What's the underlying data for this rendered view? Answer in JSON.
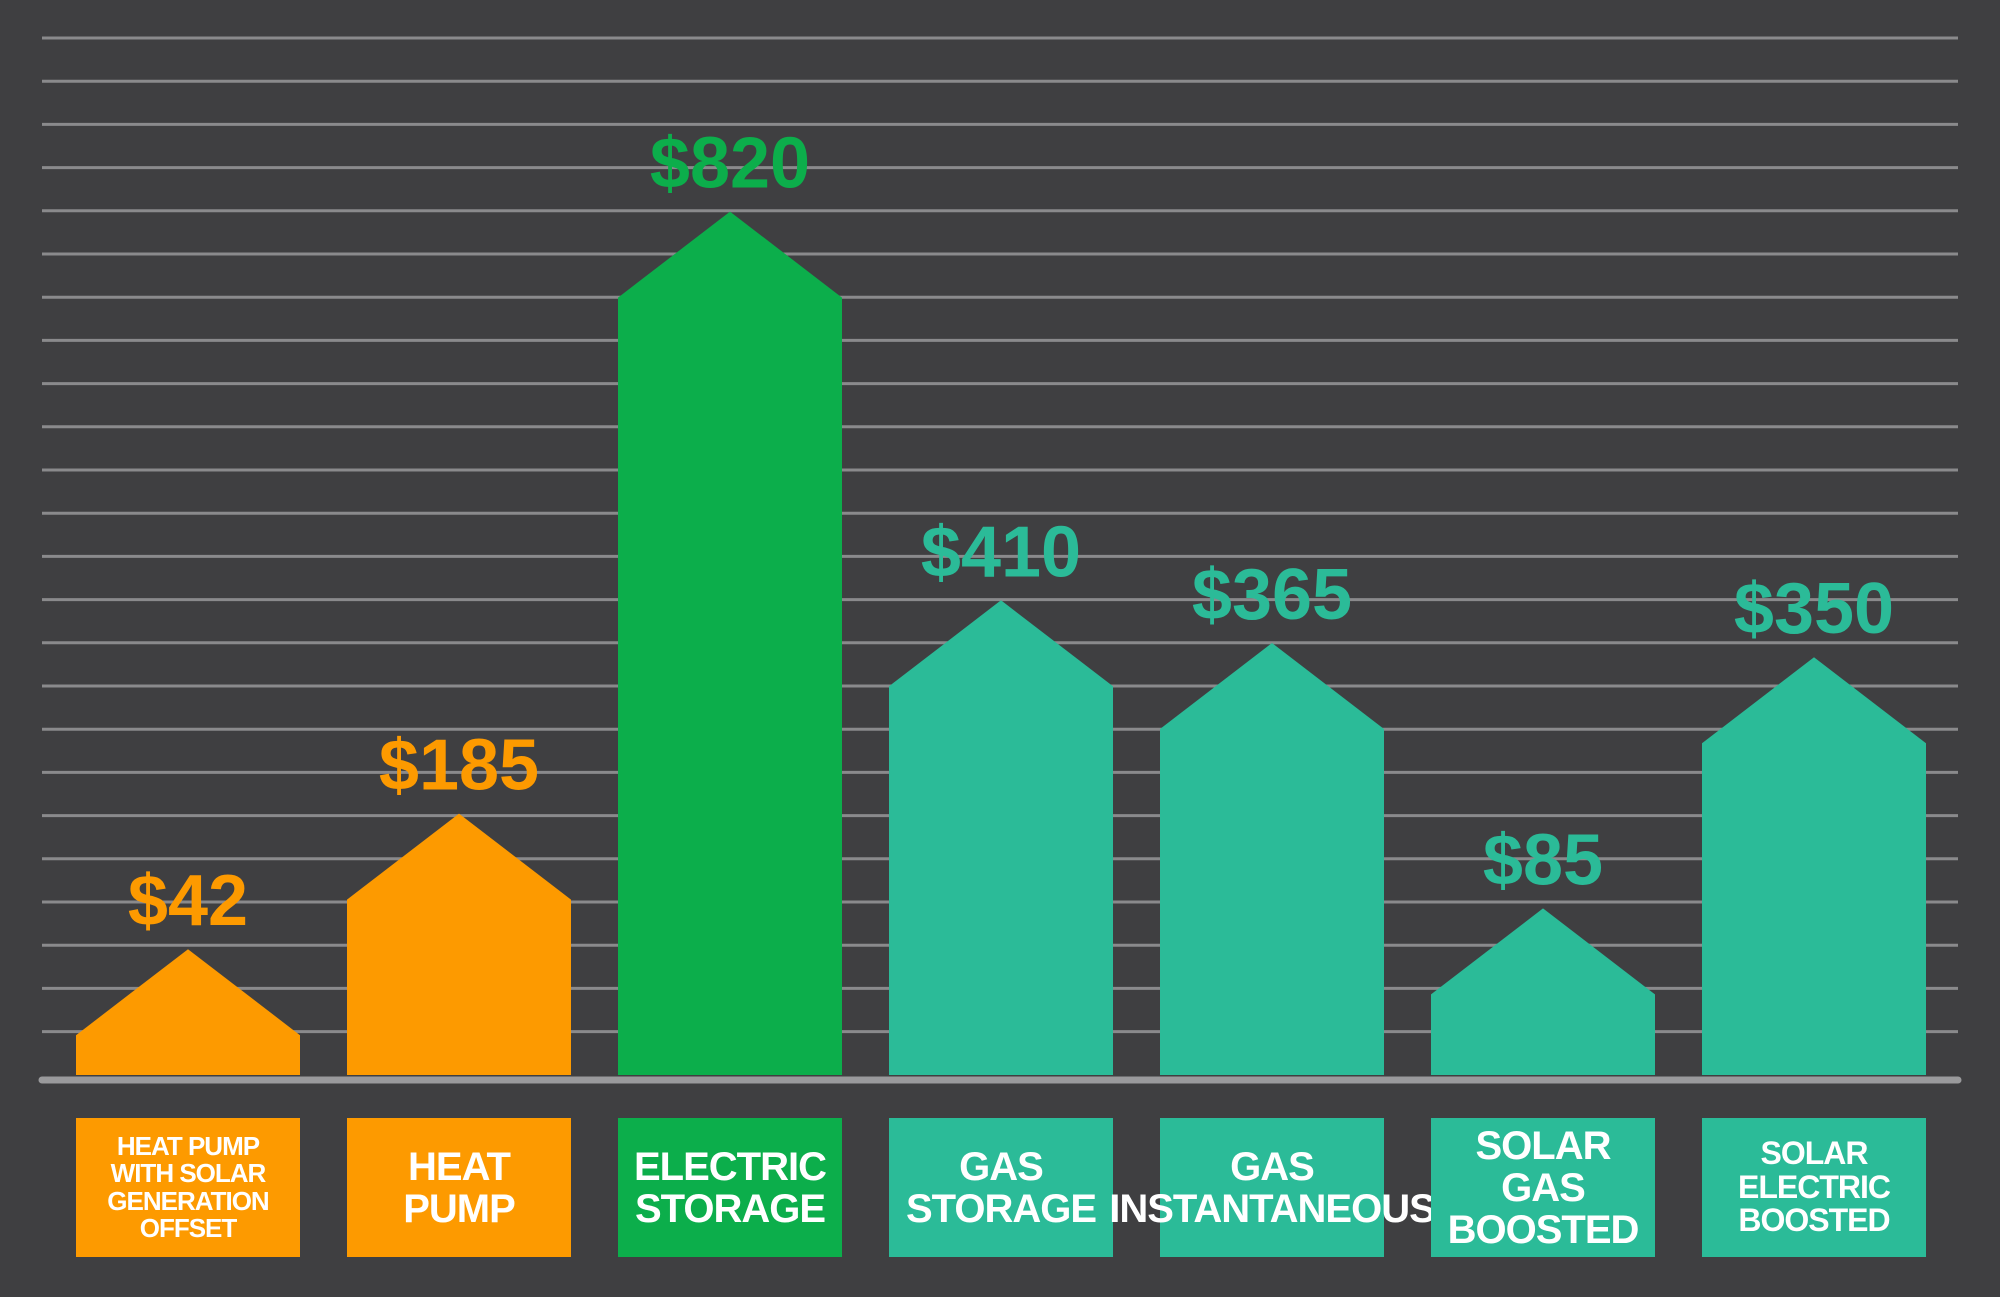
{
  "chart_data": {
    "type": "bar",
    "categories": [
      "HEAT PUMP WITH SOLAR GENERATION OFFSET",
      "HEAT PUMP",
      "ELECTRIC STORAGE",
      "GAS STORAGE",
      "GAS INSTANTANEOUS",
      "SOLAR GAS BOOSTED",
      "SOLAR ELECTRIC BOOSTED"
    ],
    "values": [
      42,
      185,
      820,
      410,
      365,
      85,
      350
    ],
    "data_labels": [
      "$42",
      "$185",
      "$820",
      "$410",
      "$365",
      "$85",
      "$350"
    ],
    "title": "",
    "xlabel": "",
    "ylabel": "",
    "ylim": [
      0,
      1000
    ],
    "grid": true,
    "legend": "none",
    "colors": {
      "background": "#3f3f41",
      "grid": "#8a8a8c",
      "baseline": "#9a9a9c",
      "orange": "#fd9a00",
      "green": "#0cae4b",
      "teal": "#2bbb98"
    },
    "bar_colors": [
      "#fd9a00",
      "#fd9a00",
      "#0cae4b",
      "#2bbb98",
      "#2bbb98",
      "#2bbb98",
      "#2bbb98"
    ]
  }
}
